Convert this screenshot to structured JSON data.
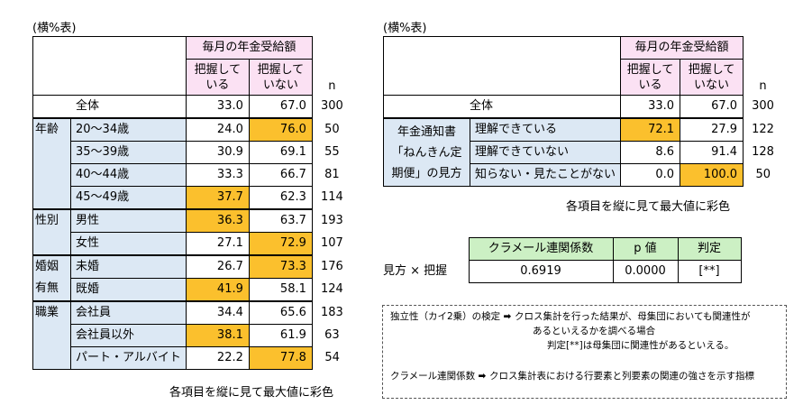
{
  "left": {
    "caption": "(横%表)",
    "header": "毎月の年金受給額",
    "col1": "把握して\nいる",
    "col2": "把握して\nいない",
    "n_label": "n",
    "total": {
      "label": "全体",
      "v1": "33.0",
      "v2": "67.0",
      "n": "300"
    },
    "groups": [
      {
        "label": "年齢",
        "rows": [
          {
            "label": "20〜34歳",
            "v1": "24.0",
            "v2": "76.0",
            "n": "50"
          },
          {
            "label": "35〜39歳",
            "v1": "30.9",
            "v2": "69.1",
            "n": "55"
          },
          {
            "label": "40〜44歳",
            "v1": "33.3",
            "v2": "66.7",
            "n": "81"
          },
          {
            "label": "45〜49歳",
            "v1": "37.7",
            "v2": "62.3",
            "n": "114"
          }
        ]
      },
      {
        "label": "性別",
        "rows": [
          {
            "label": "男性",
            "v1": "36.3",
            "v2": "63.7",
            "n": "193"
          },
          {
            "label": "女性",
            "v1": "27.1",
            "v2": "72.9",
            "n": "107"
          }
        ]
      },
      {
        "label": "婚姻有無",
        "rows": [
          {
            "label": "未婚",
            "v1": "26.7",
            "v2": "73.3",
            "n": "176"
          },
          {
            "label": "既婚",
            "v1": "41.9",
            "v2": "58.1",
            "n": "124"
          }
        ]
      },
      {
        "label": "職業",
        "rows": [
          {
            "label": "会社員",
            "v1": "34.4",
            "v2": "65.6",
            "n": "183"
          },
          {
            "label": "会社員以外",
            "v1": "38.1",
            "v2": "61.9",
            "n": "63"
          },
          {
            "label": "パート・アルバイト",
            "v1": "22.2",
            "v2": "77.8",
            "n": "54"
          }
        ]
      }
    ],
    "footnote": "各項目を縦に見て最大値に彩色"
  },
  "right": {
    "caption": "(横%表)",
    "header": "毎月の年金受給額",
    "col1": "把握して\nいる",
    "col2": "把握して\nいない",
    "n_label": "n",
    "total": {
      "label": "全体",
      "v1": "33.0",
      "v2": "67.0",
      "n": "300"
    },
    "group_label": "年金通知書「ねんきん定期便」の見方",
    "rows": [
      {
        "label": "理解できている",
        "v1": "72.1",
        "v2": "27.9",
        "n": "122"
      },
      {
        "label": "理解できていない",
        "v1": "8.6",
        "v2": "91.4",
        "n": "128"
      },
      {
        "label": "知らない・見たことがない",
        "v1": "0.0",
        "v2": "100.0",
        "n": "50"
      }
    ],
    "footnote": "各項目を縦に見て最大値に彩色"
  },
  "stats": {
    "headers": [
      "クラメール連関係数",
      "p 値",
      "判定"
    ],
    "row_label": "見方 × 把握",
    "values": [
      "0.6919",
      "0.0000",
      "[**]"
    ]
  },
  "notes": {
    "line1a": "独立性（カイ2乗）の検定",
    "line1b": "クロス集計を行った結果が、母集団においても関連性が",
    "line2": "あるといえるかを調べる場合",
    "line3": "判定[**]は母集団に関連性があるといえる。",
    "line4a": "クラメール連関係数",
    "line4b": "クロス集計表における行要素と列要素の関連の強さを示す指標"
  },
  "colors": {
    "header_pink": "#fbe1f3",
    "label_blue": "#dce8f4",
    "highlight": "#fbc02d",
    "stat_header_green": "#ccf0c4"
  }
}
